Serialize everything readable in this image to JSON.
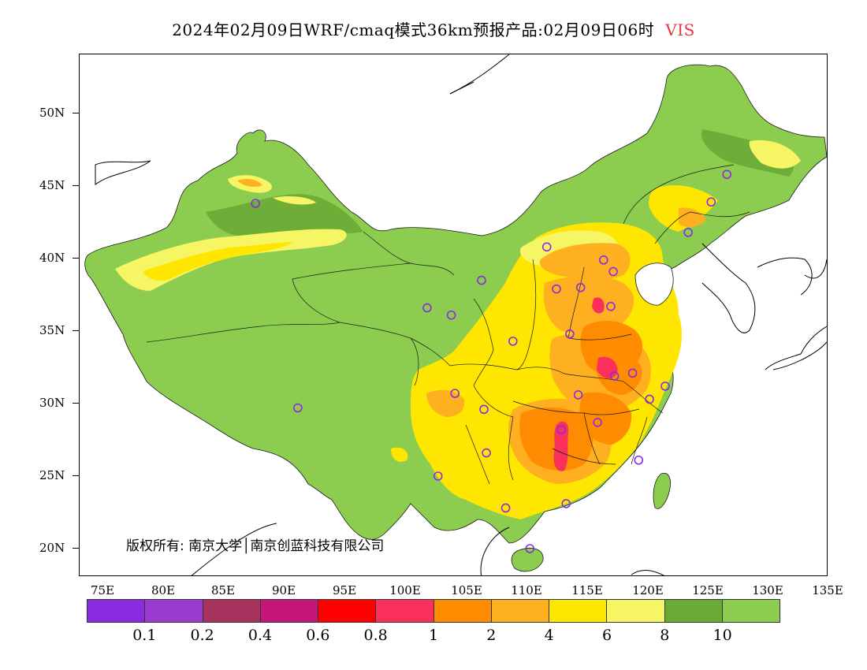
{
  "title": {
    "main": "2024年02月09日WRF/cmaq模式36km预报产品:02月09日06时",
    "variable": "VIS",
    "variable_color": "#e8383f"
  },
  "axes": {
    "latitudes": [
      "50N",
      "45N",
      "40N",
      "35N",
      "30N",
      "25N",
      "20N"
    ],
    "longitudes": [
      "75E",
      "80E",
      "85E",
      "90E",
      "95E",
      "100E",
      "105E",
      "110E",
      "115E",
      "120E",
      "125E",
      "130E",
      "135E"
    ]
  },
  "copyright": "版权所有: 南京大学│南京创蓝科技有限公司",
  "legend": {
    "colors": [
      "#8a2be2",
      "#9b3bd0",
      "#a8325e",
      "#c8157a",
      "#ff0000",
      "#f8305a",
      "#ff8c00",
      "#ffb020",
      "#ffe600",
      "#f6f564",
      "#6aaa35",
      "#8ccd50"
    ],
    "labels": [
      "0.1",
      "0.2",
      "0.4",
      "0.6",
      "0.8",
      "1",
      "2",
      "4",
      "6",
      "8",
      "10"
    ]
  },
  "colors": {
    "land_base": "#8ccd50",
    "land_dark": "#6aaa35",
    "low_vis": "#f6f564",
    "mid": "#ffe600",
    "orange": "#ffb020",
    "dark_orange": "#ff8c00",
    "red": "#f8305a",
    "station_marker": "#8a2be2"
  },
  "stations": [
    {
      "lon": 87.6,
      "lat": 43.8
    },
    {
      "lon": 91.1,
      "lat": 29.7
    },
    {
      "lon": 101.8,
      "lat": 36.6
    },
    {
      "lon": 103.8,
      "lat": 36.1
    },
    {
      "lon": 106.3,
      "lat": 38.5
    },
    {
      "lon": 111.7,
      "lat": 40.8
    },
    {
      "lon": 116.4,
      "lat": 39.9
    },
    {
      "lon": 117.2,
      "lat": 39.1
    },
    {
      "lon": 112.5,
      "lat": 37.9
    },
    {
      "lon": 114.5,
      "lat": 38.0
    },
    {
      "lon": 117.0,
      "lat": 36.7
    },
    {
      "lon": 113.6,
      "lat": 34.8
    },
    {
      "lon": 108.9,
      "lat": 34.3
    },
    {
      "lon": 104.1,
      "lat": 30.7
    },
    {
      "lon": 106.5,
      "lat": 29.6
    },
    {
      "lon": 114.3,
      "lat": 30.6
    },
    {
      "lon": 117.3,
      "lat": 31.9
    },
    {
      "lon": 118.8,
      "lat": 32.1
    },
    {
      "lon": 120.2,
      "lat": 30.3
    },
    {
      "lon": 121.5,
      "lat": 31.2
    },
    {
      "lon": 112.9,
      "lat": 28.2
    },
    {
      "lon": 115.9,
      "lat": 28.7
    },
    {
      "lon": 119.3,
      "lat": 26.1
    },
    {
      "lon": 106.7,
      "lat": 26.6
    },
    {
      "lon": 102.7,
      "lat": 25.0
    },
    {
      "lon": 108.3,
      "lat": 22.8
    },
    {
      "lon": 113.3,
      "lat": 23.1
    },
    {
      "lon": 110.3,
      "lat": 20.0
    },
    {
      "lon": 123.4,
      "lat": 41.8
    },
    {
      "lon": 125.3,
      "lat": 43.9
    },
    {
      "lon": 126.6,
      "lat": 45.8
    }
  ]
}
